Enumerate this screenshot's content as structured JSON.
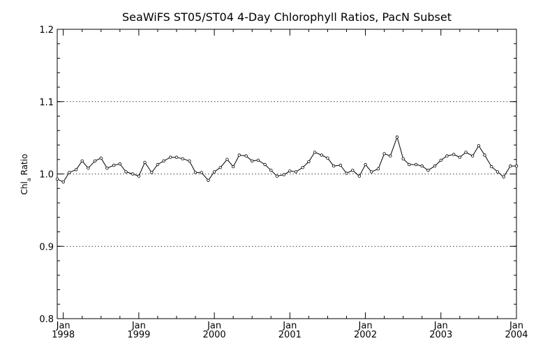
{
  "chart_data": {
    "type": "line",
    "title": "SeaWiFS ST05/ST04 4-Day Chlorophyll Ratios, PacN Subset",
    "ylabel_main": "Chl",
    "ylabel_sub": "a",
    "ylabel_rest": " Ratio",
    "xlabel": "",
    "ylim": [
      0.8,
      1.2
    ],
    "yticks": [
      {
        "value": 0.8,
        "label": "0.8"
      },
      {
        "value": 0.9,
        "label": "0.9"
      },
      {
        "value": 1.0,
        "label": "1.0"
      },
      {
        "value": 1.1,
        "label": "1.1"
      },
      {
        "value": 1.2,
        "label": "1.2"
      }
    ],
    "grid_y": [
      0.9,
      1.0,
      1.1
    ],
    "xlim": [
      1997.92,
      2004.0
    ],
    "xticks": [
      {
        "value": 1998.0,
        "month": "Jan",
        "year": "1998"
      },
      {
        "value": 1999.0,
        "month": "Jan",
        "year": "1999"
      },
      {
        "value": 2000.0,
        "month": "Jan",
        "year": "2000"
      },
      {
        "value": 2001.0,
        "month": "Jan",
        "year": "2001"
      },
      {
        "value": 2002.0,
        "month": "Jan",
        "year": "2002"
      },
      {
        "value": 2003.0,
        "month": "Jan",
        "year": "2003"
      },
      {
        "value": 2004.0,
        "month": "Jan",
        "year": "2004"
      }
    ],
    "series": [
      {
        "x": [
          1997.92,
          1998.0,
          1998.08,
          1998.17,
          1998.25,
          1998.33,
          1998.42,
          1998.5,
          1998.58,
          1998.67,
          1998.75,
          1998.83,
          1998.92,
          1999.0,
          1999.08,
          1999.17,
          1999.25,
          1999.33,
          1999.42,
          1999.5,
          1999.58,
          1999.67,
          1999.75,
          1999.83,
          1999.92,
          2000.0,
          2000.08,
          2000.17,
          2000.25,
          2000.33,
          2000.42,
          2000.5,
          2000.58,
          2000.67,
          2000.75,
          2000.83,
          2000.92,
          2001.0,
          2001.08,
          2001.17,
          2001.25,
          2001.33,
          2001.42,
          2001.5,
          2001.58,
          2001.67,
          2001.75,
          2001.83,
          2001.92,
          2002.0,
          2002.08,
          2002.17,
          2002.25,
          2002.33,
          2002.42,
          2002.5,
          2002.58,
          2002.67,
          2002.75,
          2002.83,
          2002.92,
          2003.0,
          2003.08,
          2003.17,
          2003.25,
          2003.33,
          2003.42,
          2003.5,
          2003.58,
          2003.67,
          2003.75,
          2003.83,
          2003.92,
          2004.0
        ],
        "y": [
          0.993,
          0.989,
          1.002,
          1.006,
          1.018,
          1.008,
          1.018,
          1.022,
          1.008,
          1.012,
          1.014,
          1.003,
          1.0,
          0.997,
          1.016,
          1.002,
          1.013,
          1.018,
          1.023,
          1.023,
          1.021,
          1.018,
          1.002,
          1.002,
          0.991,
          1.003,
          1.009,
          1.02,
          1.01,
          1.026,
          1.025,
          1.018,
          1.019,
          1.013,
          1.005,
          0.997,
          0.999,
          1.004,
          1.003,
          1.009,
          1.017,
          1.03,
          1.026,
          1.022,
          1.011,
          1.012,
          1.001,
          1.005,
          0.997,
          1.013,
          1.003,
          1.007,
          1.028,
          1.025,
          1.051,
          1.021,
          1.013,
          1.013,
          1.011,
          1.005,
          1.011,
          1.019,
          1.025,
          1.027,
          1.023,
          1.03,
          1.025,
          1.039,
          1.026,
          1.01,
          1.003,
          0.996,
          1.011,
          1.011
        ]
      }
    ]
  }
}
